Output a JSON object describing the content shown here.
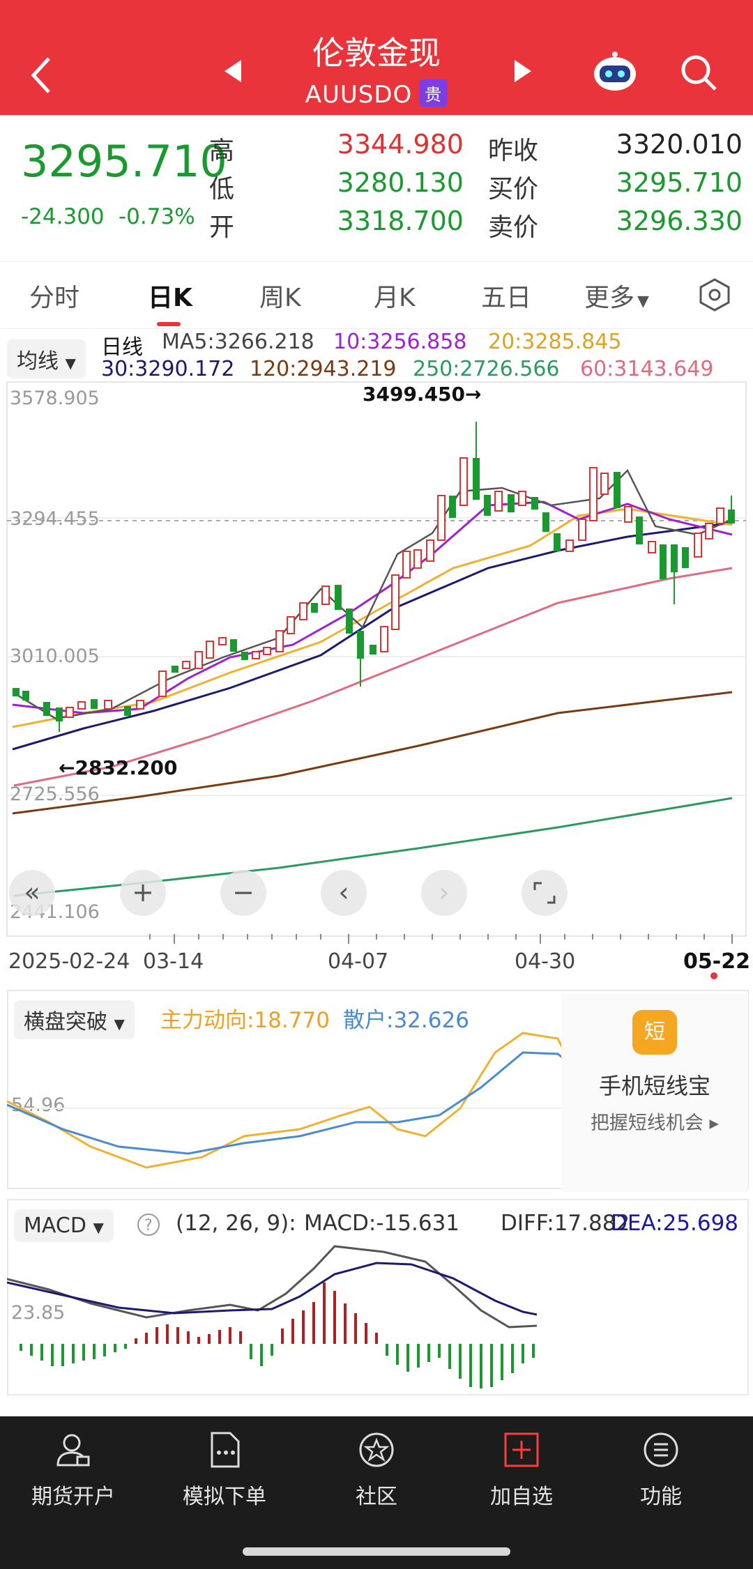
{
  "header": {
    "title": "伦敦金现",
    "code": "AUUSDO",
    "badge": "贵"
  },
  "quote": {
    "price": "3295.710",
    "change": "-24.300",
    "change_pct": "-0.73%",
    "high_label": "高",
    "high": "3344.980",
    "low_label": "低",
    "low": "3280.130",
    "open_label": "开",
    "open": "3318.700",
    "prev_close_label": "昨收",
    "prev_close": "3320.010",
    "bid_label": "买价",
    "bid": "3295.710",
    "ask_label": "卖价",
    "ask": "3296.330"
  },
  "tabs": [
    "分时",
    "日K",
    "周K",
    "月K",
    "五日",
    "更多"
  ],
  "active_tab": "日K",
  "ma": {
    "selector": "均线",
    "line_label": "日线",
    "ma5": "MA5:3266.218",
    "ma10": "10:3256.858",
    "ma20": "20:3285.845",
    "ma30": "30:3290.172",
    "ma120": "120:2943.219",
    "ma250": "250:2726.566",
    "ma60": "60:3143.649"
  },
  "price_axis": {
    "top": "3578.905",
    "mid": "3294.455",
    "low1": "3010.005",
    "low2": "2725.556",
    "bottom": "2441.106"
  },
  "annotations": {
    "high": "3499.450→",
    "low": "←2832.200"
  },
  "date_axis": [
    "2025-02-24",
    "03-14",
    "04-07",
    "04-30",
    "05-22"
  ],
  "indicator1": {
    "selector": "横盘突破",
    "main": "主力动向:18.770",
    "retail": "散户:32.626",
    "axis": "54.96"
  },
  "promo": {
    "title": "手机短线宝",
    "subtitle": "把握短线机会 ▸",
    "icon_char": "短"
  },
  "macd": {
    "selector": "MACD",
    "params": "(12, 26, 9):",
    "macd": "MACD:-15.631",
    "diff": "DIFF:17.882",
    "dea": "DEA:25.698",
    "axis": "23.85"
  },
  "nav": [
    "期货开户",
    "模拟下单",
    "社区",
    "加自选",
    "功能"
  ],
  "colors": {
    "header": "#e8343a",
    "up": "#e03030",
    "down": "#1a9a2e",
    "ma5": "#555555",
    "ma10": "#a020d0",
    "ma20": "#f0b030",
    "ma30": "#1a1a6e",
    "ma60": "#e06a80",
    "ma120": "#7a3a10",
    "ma250": "#2a9a60"
  }
}
